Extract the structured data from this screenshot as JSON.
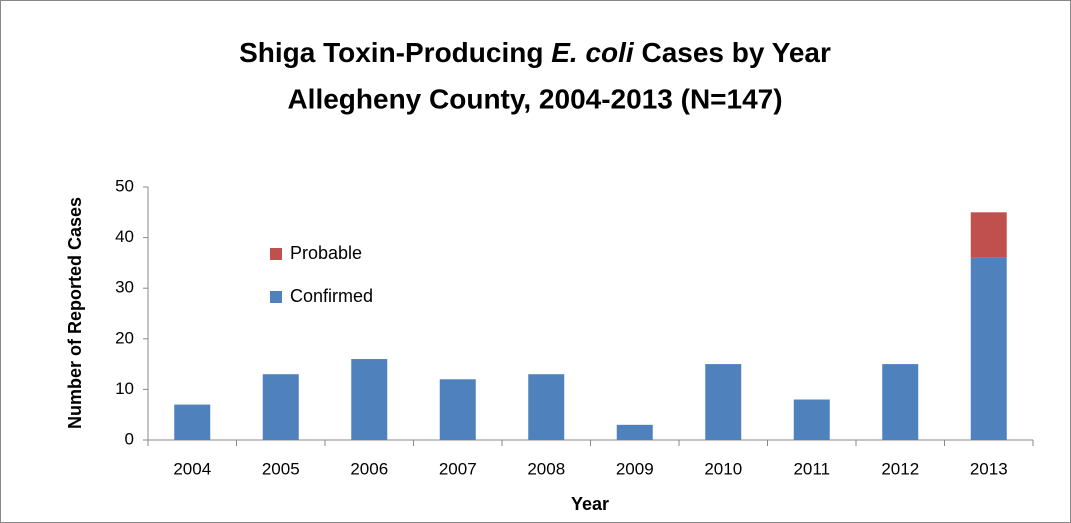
{
  "chart_data": {
    "type": "stacked_bar",
    "title": [
      "Shiga Toxin-Producing ",
      "E. coli",
      " Cases by Year"
    ],
    "subtitle": "Allegheny County, 2004-2013 (N=147)",
    "x_label": "Year",
    "y_label": "Number of Reported Cases",
    "categories": [
      "2004",
      "2005",
      "2006",
      "2007",
      "2008",
      "2009",
      "2010",
      "2011",
      "2012",
      "2013"
    ],
    "series": [
      {
        "name": "Confirmed",
        "color": "#4f81bd",
        "values": [
          7,
          13,
          16,
          12,
          13,
          3,
          15,
          8,
          15,
          36
        ]
      },
      {
        "name": "Probable",
        "color": "#c0504d",
        "values": [
          0,
          0,
          0,
          0,
          0,
          0,
          0,
          0,
          0,
          9
        ]
      }
    ],
    "ylim": [
      0,
      50
    ],
    "yticks": [
      0,
      10,
      20,
      30,
      40,
      50
    ],
    "grid": false
  }
}
